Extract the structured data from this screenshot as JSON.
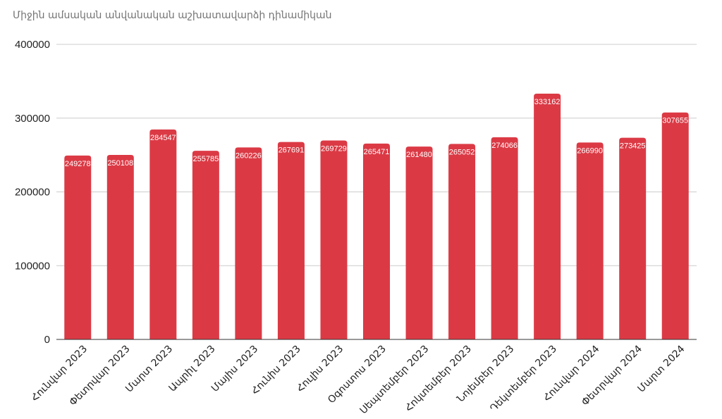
{
  "chart_data": {
    "type": "bar",
    "title": "Միջին ամսական անվանական աշխատավարձի դինամիկան",
    "xlabel": "",
    "ylabel": "",
    "categories": [
      "Հունվար 2023",
      "Փետրվար 2023",
      "Մարտ 2023",
      "Ապրիլ 2023",
      "Մայիս 2023",
      "Հունիս 2023",
      "Հուլիս 2023",
      "Օգոստոս 2023",
      "Սեպտեմբեր 2023",
      "Հոկտեմբեր 2023",
      "Նոյեմբեր 2023",
      "Դեկտեմբեր 2023",
      "Հունվար 2024",
      "Փետրվար 2024",
      "Մարտ 2024"
    ],
    "values": [
      249278,
      250108,
      284547,
      255785,
      260226,
      267691,
      269729,
      265471,
      261480,
      265052,
      274066,
      333162,
      266990,
      273425,
      307655
    ],
    "ylim": [
      0,
      400000
    ],
    "yticks": [
      0,
      100000,
      200000,
      300000,
      400000
    ],
    "grid": true,
    "bar_color": "#db3a45",
    "legend": "none"
  }
}
